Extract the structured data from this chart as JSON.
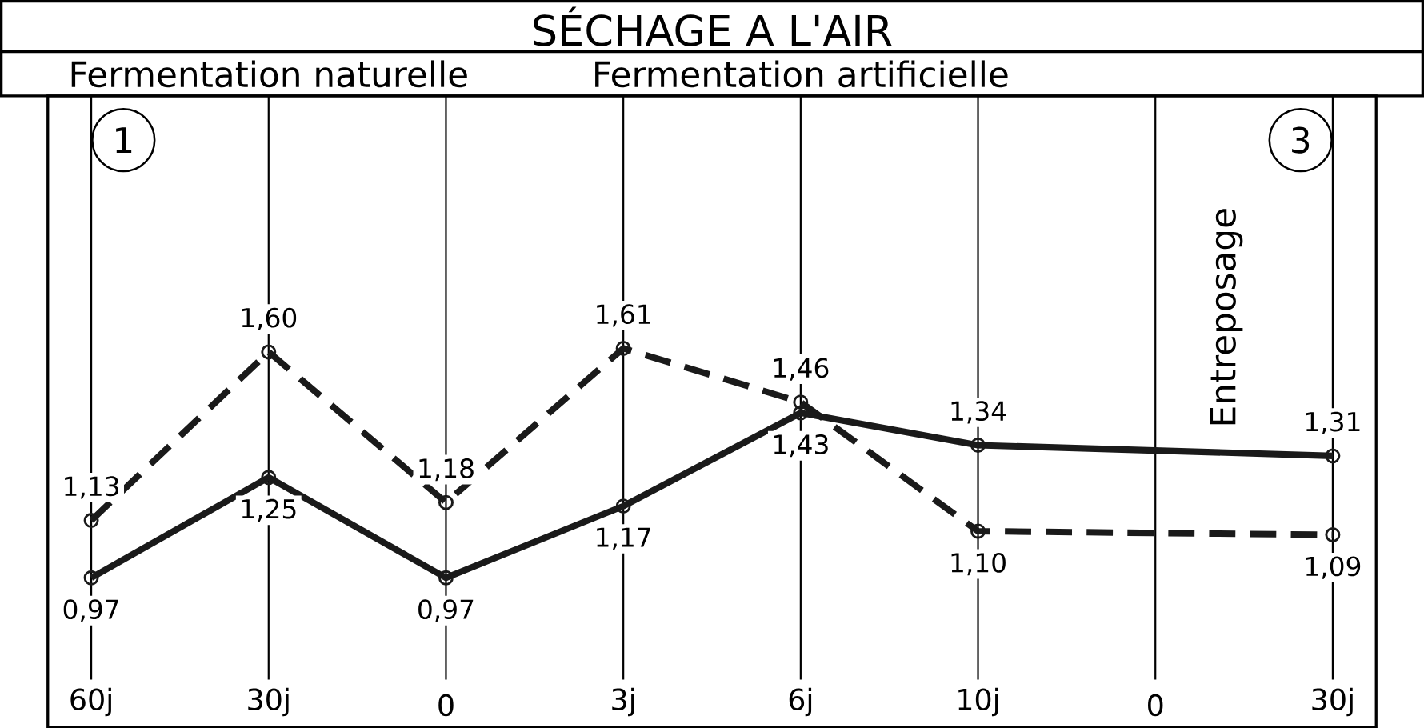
{
  "chart_data": {
    "type": "line",
    "title": "SÉCHAGE A L'AIR",
    "categories": [
      "60j",
      "30j",
      "0",
      "3j",
      "6j",
      "10j",
      "0",
      "30j"
    ],
    "series": [
      {
        "color": "#1a1a1a",
        "line_style": "dashed",
        "values": [
          1.13,
          1.6,
          1.18,
          1.61,
          1.46,
          1.1,
          null,
          1.09
        ],
        "value_labels": [
          "1,13",
          "1,60",
          "1,18",
          "1,61",
          "1,46",
          "1,10",
          null,
          "1,09"
        ]
      },
      {
        "color": "#1a1a1a",
        "line_style": "solid",
        "values": [
          0.97,
          1.25,
          0.97,
          1.17,
          1.43,
          1.34,
          null,
          1.31
        ],
        "value_labels": [
          "0,97",
          "1,25",
          "0,97",
          "1,17",
          "1,43",
          "1,34",
          null,
          "1,31"
        ]
      }
    ],
    "annotations": [
      "Fermentation naturelle",
      "Fermentation artificielle",
      "1",
      "3",
      "Entreposage"
    ],
    "marker": "circle",
    "grid": "x",
    "legend": false,
    "tick_labels": "x"
  }
}
